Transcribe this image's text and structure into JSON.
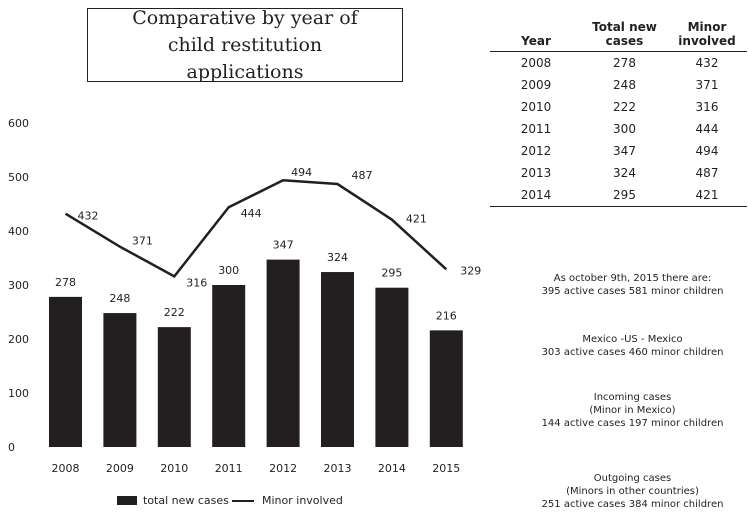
{
  "title": "Comparative by year of child restitution applications",
  "chart_data": {
    "type": "bar",
    "categories": [
      "2008",
      "2009",
      "2010",
      "2011",
      "2012",
      "2013",
      "2014",
      "2015"
    ],
    "series": [
      {
        "name": "total new cases",
        "type": "bar",
        "values": [
          278,
          248,
          222,
          300,
          347,
          324,
          295,
          216
        ]
      },
      {
        "name": "Minor involved",
        "type": "line",
        "values": [
          432,
          371,
          316,
          444,
          494,
          487,
          421,
          329
        ]
      }
    ],
    "yticks": [
      "0",
      "100",
      "200",
      "300",
      "400",
      "500",
      "600"
    ],
    "ylim": [
      0,
      600
    ],
    "grid": false,
    "legend": "bottom",
    "color": "#231f20"
  },
  "table": {
    "headers": [
      "Year",
      "Total new cases",
      "Minor involved"
    ],
    "rows": [
      [
        "2008",
        "278",
        "432"
      ],
      [
        "2009",
        "248",
        "371"
      ],
      [
        "2010",
        "222",
        "316"
      ],
      [
        "2011",
        "300",
        "444"
      ],
      [
        "2012",
        "347",
        "494"
      ],
      [
        "2013",
        "324",
        "487"
      ],
      [
        "2014",
        "295",
        "421"
      ]
    ]
  },
  "notes": {
    "n1_line1": "As october 9th, 2015 there are:",
    "n1_line2": "395 active cases 581 minor children",
    "n2_line1": "Mexico -US - Mexico",
    "n2_line2": "303 active cases 460 minor children",
    "n3_line1": "Incoming cases",
    "n3_line2": "(Minor in Mexico)",
    "n3_line3": "144 active cases 197 minor children",
    "n4_line1": "Outgoing cases",
    "n4_line2": "(Minors in other countries)",
    "n4_line3": "251 active cases 384 minor children"
  },
  "legend": {
    "bar_label": "total new cases",
    "line_label": "Minor involved"
  }
}
